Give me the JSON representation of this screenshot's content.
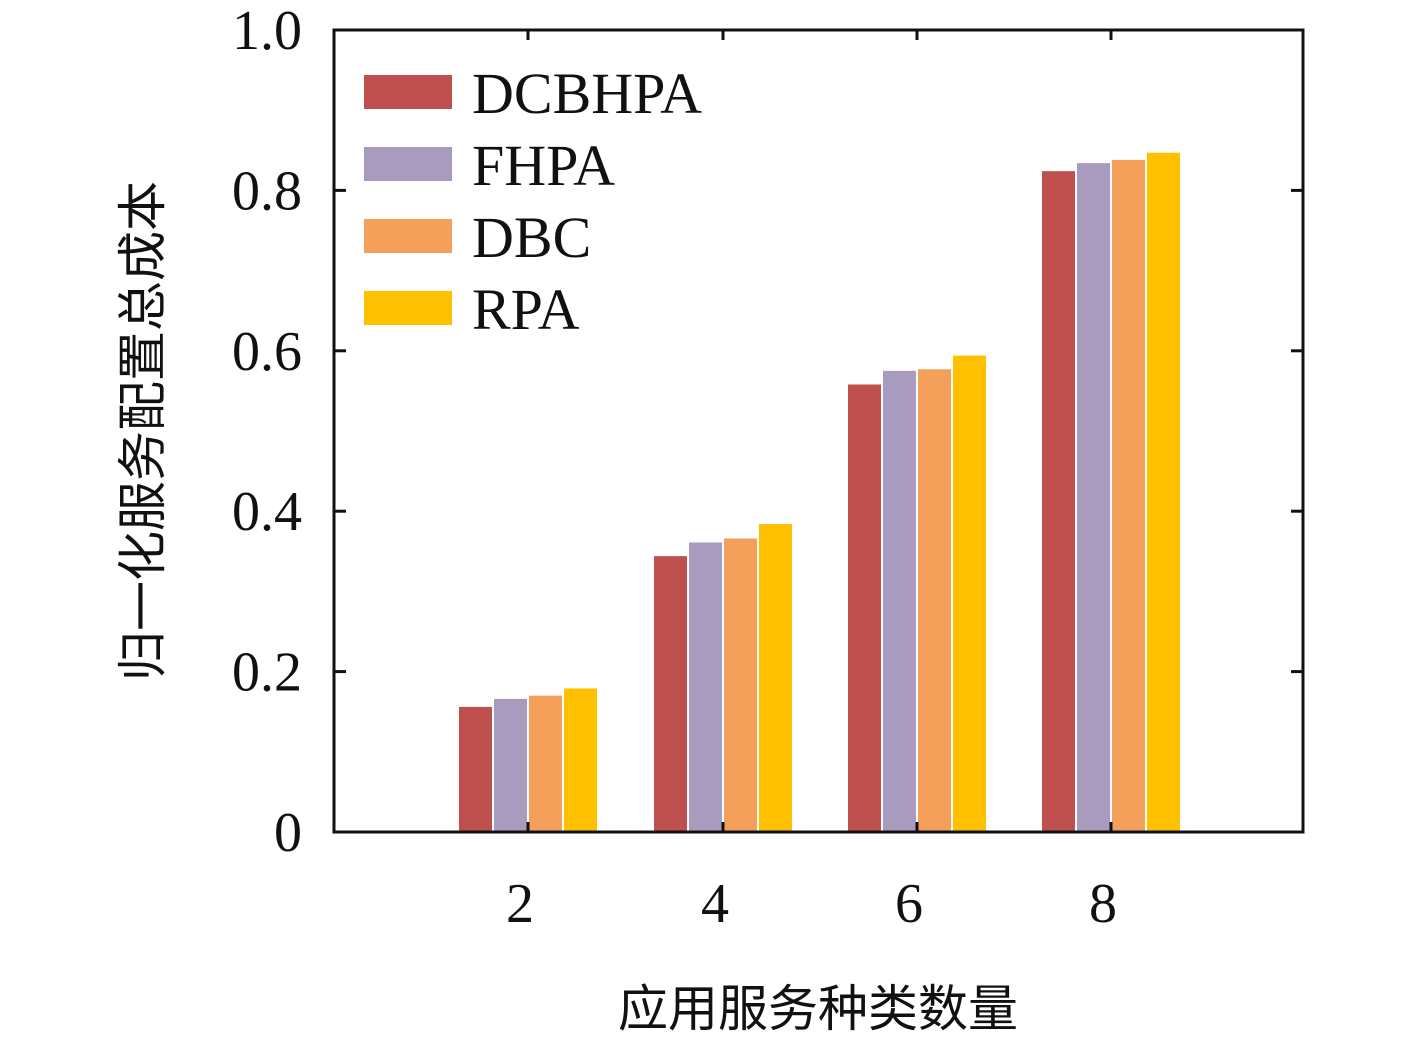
{
  "chart_data": {
    "type": "bar",
    "categories": [
      "2",
      "4",
      "6",
      "8"
    ],
    "series": [
      {
        "name": "DCBHPA",
        "color": "#C0504D",
        "values": [
          0.156,
          0.344,
          0.558,
          0.824
        ]
      },
      {
        "name": "FHPA",
        "color": "#A99BBE",
        "values": [
          0.166,
          0.361,
          0.575,
          0.834
        ]
      },
      {
        "name": "DBC",
        "color": "#F4A05A",
        "values": [
          0.17,
          0.366,
          0.577,
          0.838
        ]
      },
      {
        "name": "RPA",
        "color": "#FFC000",
        "values": [
          0.179,
          0.384,
          0.594,
          0.847
        ]
      }
    ],
    "title": "",
    "xlabel": "应用服务种类数量",
    "ylabel": "归一化服务配置总成本",
    "ylim": [
      0,
      1.0
    ],
    "yticks": [
      "0",
      "0.2",
      "0.4",
      "0.6",
      "0.8",
      "1.0"
    ],
    "grid": false,
    "legend_position": "top-left"
  }
}
